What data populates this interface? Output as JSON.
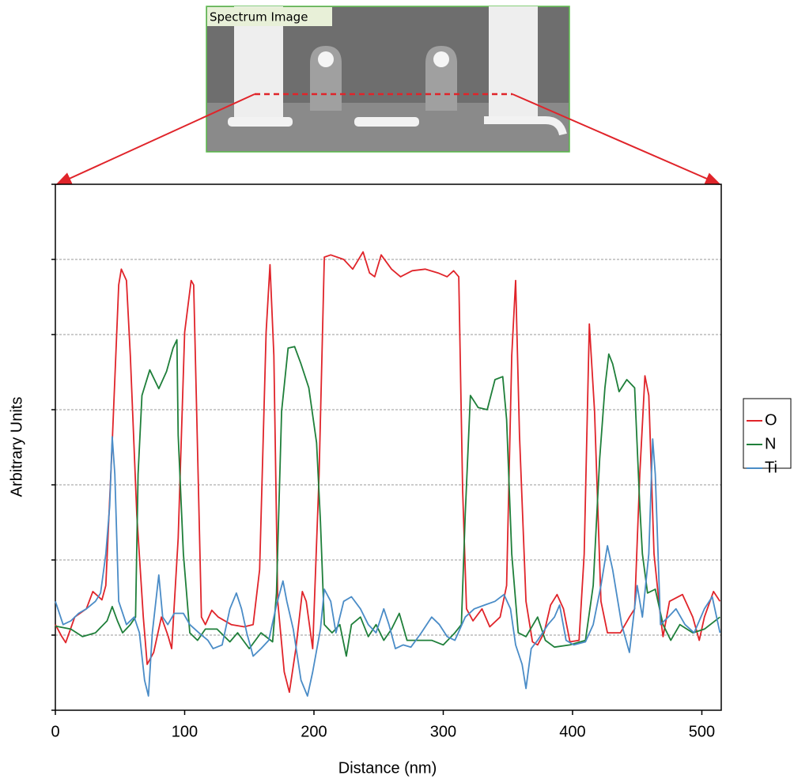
{
  "inset_label": "Spectrum Image",
  "chart_data": {
    "type": "line",
    "x_label": "Distance (nm)",
    "y_label": "Arbitrary Units",
    "xlim": [
      0,
      515
    ],
    "xticks": [
      0,
      100,
      200,
      300,
      400,
      500
    ],
    "ylim": [
      -1,
      6
    ],
    "yticks": [
      -1,
      0,
      1,
      2,
      3,
      4,
      5,
      6
    ],
    "grid": true,
    "legend": "right",
    "series": [
      {
        "name": "O",
        "color": "#e0242a",
        "x": [
          0,
          5,
          8,
          15,
          24,
          29,
          36,
          39,
          44,
          49,
          51,
          55,
          58,
          63,
          68,
          71,
          76,
          82,
          87,
          90,
          95,
          100,
          105,
          107,
          109,
          113,
          116,
          121,
          126,
          136,
          146,
          153,
          158,
          163,
          166,
          169,
          172,
          177,
          181,
          186,
          191,
          194,
          199,
          204,
          208,
          213,
          223,
          230,
          238,
          243,
          247,
          252,
          260,
          267,
          276,
          286,
          296,
          303,
          308,
          312,
          315,
          318,
          323,
          330,
          336,
          344,
          349,
          353,
          356,
          359,
          364,
          369,
          373,
          378,
          383,
          388,
          393,
          398,
          405,
          409,
          413,
          417,
          422,
          427,
          437,
          444,
          448,
          452,
          456,
          459,
          463,
          468,
          470,
          475,
          485,
          493,
          498,
          502,
          509,
          514
        ],
        "values": [
          0.14,
          -0.02,
          -0.1,
          0.24,
          0.35,
          0.58,
          0.47,
          0.66,
          2.56,
          4.66,
          4.87,
          4.72,
          3.72,
          1.6,
          0.24,
          -0.39,
          -0.23,
          0.24,
          0,
          -0.18,
          1.29,
          4.03,
          4.72,
          4.66,
          3.19,
          0.24,
          0.14,
          0.33,
          0.24,
          0.14,
          0.11,
          0.14,
          0.87,
          4.03,
          4.93,
          3.72,
          0.45,
          -0.49,
          -0.76,
          -0.18,
          0.58,
          0.45,
          -0.18,
          2.14,
          5.03,
          5.06,
          5,
          4.87,
          5.1,
          4.82,
          4.77,
          5.06,
          4.87,
          4.77,
          4.85,
          4.87,
          4.82,
          4.77,
          4.85,
          4.77,
          1.93,
          0.35,
          0.19,
          0.35,
          0.11,
          0.24,
          0.66,
          3.72,
          4.72,
          2.66,
          0.45,
          -0.09,
          -0.13,
          0.03,
          0.4,
          0.54,
          0.35,
          -0.09,
          -0.07,
          1.08,
          4.14,
          2.98,
          0.45,
          0.03,
          0.03,
          0.24,
          0.35,
          2.14,
          3.45,
          3.19,
          1.08,
          0.24,
          -0.02,
          0.45,
          0.54,
          0.24,
          -0.07,
          0.24,
          0.58,
          0.45
        ]
      },
      {
        "name": "N",
        "color": "#1f7f3a",
        "x": [
          0,
          12,
          21,
          31,
          40,
          44,
          48,
          52,
          58,
          62,
          64,
          67,
          73,
          80,
          86,
          91,
          94,
          95,
          99,
          104,
          110,
          116,
          125,
          135,
          141,
          150,
          159,
          168,
          171,
          175,
          180,
          185,
          190,
          196,
          202,
          205,
          208,
          214,
          220,
          225,
          229,
          236,
          242,
          248,
          254,
          260,
          266,
          272,
          282,
          291,
          300,
          309,
          314,
          317,
          321,
          327,
          334,
          340,
          346,
          349,
          353,
          358,
          364,
          373,
          379,
          386,
          398,
          410,
          416,
          421,
          425,
          428,
          431,
          436,
          442,
          448,
          452,
          454,
          458,
          464,
          470,
          476,
          483,
          493,
          502,
          514
        ],
        "values": [
          0.12,
          0.08,
          -0.02,
          0.03,
          0.19,
          0.38,
          0.19,
          0.03,
          0.14,
          0.24,
          2.14,
          3.19,
          3.53,
          3.28,
          3.51,
          3.82,
          3.93,
          2.66,
          1.08,
          0.03,
          -0.07,
          0.08,
          0.08,
          -0.09,
          0.03,
          -0.18,
          0.03,
          -0.09,
          0.56,
          2.98,
          3.82,
          3.84,
          3.61,
          3.29,
          2.56,
          1.51,
          0.14,
          0.03,
          0.14,
          -0.28,
          0.14,
          0.24,
          -0.02,
          0.14,
          -0.07,
          0.08,
          0.29,
          -0.07,
          -0.07,
          -0.07,
          -0.13,
          0.03,
          0.14,
          1.61,
          3.19,
          3.03,
          3,
          3.4,
          3.44,
          2.87,
          1.08,
          0.03,
          -0.02,
          0.24,
          -0.07,
          -0.16,
          -0.13,
          -0.07,
          0.66,
          2.35,
          3.29,
          3.74,
          3.61,
          3.24,
          3.4,
          3.29,
          1.72,
          1.08,
          0.56,
          0.61,
          0.14,
          -0.07,
          0.14,
          0.03,
          0.08,
          0.24
        ]
      },
      {
        "name": "Ti",
        "color": "#4a8cc7",
        "x": [
          0,
          6,
          12,
          18,
          24,
          31,
          35,
          39,
          42,
          44,
          46,
          49,
          55,
          61,
          65,
          69,
          72,
          75,
          80,
          83,
          87,
          92,
          99,
          104,
          111,
          118,
          122,
          129,
          135,
          140,
          144,
          148,
          153,
          159,
          165,
          171,
          176,
          179,
          184,
          190,
          195,
          199,
          205,
          208,
          213,
          217,
          223,
          229,
          236,
          242,
          248,
          254,
          258,
          263,
          269,
          275,
          283,
          291,
          297,
          303,
          309,
          317,
          324,
          332,
          340,
          347,
          352,
          356,
          361,
          364,
          368,
          373,
          381,
          386,
          390,
          395,
          401,
          410,
          416,
          422,
          427,
          431,
          438,
          444,
          450,
          454,
          459,
          462,
          464,
          468,
          474,
          480,
          487,
          494,
          502,
          508,
          514
        ],
        "values": [
          0.45,
          0.14,
          0.19,
          0.29,
          0.35,
          0.45,
          0.56,
          1.08,
          1.72,
          2.64,
          2.14,
          0.45,
          0.14,
          0.24,
          0.03,
          -0.6,
          -0.81,
          0.03,
          0.8,
          0.24,
          0.14,
          0.29,
          0.29,
          0.14,
          0.03,
          -0.07,
          -0.18,
          -0.13,
          0.35,
          0.56,
          0.35,
          0.03,
          -0.28,
          -0.18,
          -0.07,
          0.4,
          0.72,
          0.45,
          0.08,
          -0.6,
          -0.81,
          -0.49,
          0.08,
          0.61,
          0.45,
          0.03,
          0.45,
          0.51,
          0.35,
          0.14,
          0.03,
          0.35,
          0.14,
          -0.18,
          -0.13,
          -0.16,
          0.03,
          0.24,
          0.14,
          -0.02,
          -0.07,
          0.24,
          0.35,
          0.4,
          0.45,
          0.54,
          0.35,
          -0.13,
          -0.39,
          -0.71,
          -0.18,
          -0.07,
          0.14,
          0.24,
          0.4,
          -0.07,
          -0.13,
          -0.09,
          0.14,
          0.66,
          1.19,
          0.87,
          0.14,
          -0.23,
          0.66,
          0.24,
          1.08,
          2.61,
          2.14,
          0.14,
          0.24,
          0.35,
          0.14,
          0.03,
          0.35,
          0.51,
          0.03
        ]
      }
    ]
  }
}
